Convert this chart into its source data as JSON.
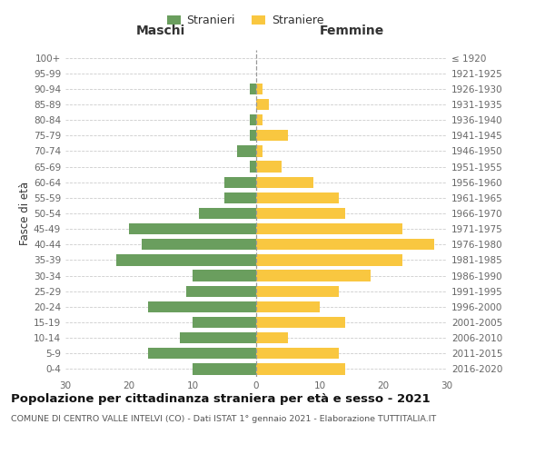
{
  "age_groups": [
    "0-4",
    "5-9",
    "10-14",
    "15-19",
    "20-24",
    "25-29",
    "30-34",
    "35-39",
    "40-44",
    "45-49",
    "50-54",
    "55-59",
    "60-64",
    "65-69",
    "70-74",
    "75-79",
    "80-84",
    "85-89",
    "90-94",
    "95-99",
    "100+"
  ],
  "birth_years": [
    "2016-2020",
    "2011-2015",
    "2006-2010",
    "2001-2005",
    "1996-2000",
    "1991-1995",
    "1986-1990",
    "1981-1985",
    "1976-1980",
    "1971-1975",
    "1966-1970",
    "1961-1965",
    "1956-1960",
    "1951-1955",
    "1946-1950",
    "1941-1945",
    "1936-1940",
    "1931-1935",
    "1926-1930",
    "1921-1925",
    "≤ 1920"
  ],
  "males": [
    10,
    17,
    12,
    10,
    17,
    11,
    10,
    22,
    18,
    20,
    9,
    5,
    5,
    1,
    3,
    1,
    1,
    0,
    1,
    0,
    0
  ],
  "females": [
    14,
    13,
    5,
    14,
    10,
    13,
    18,
    23,
    28,
    23,
    14,
    13,
    9,
    4,
    1,
    5,
    1,
    2,
    1,
    0,
    0
  ],
  "male_color": "#6a9e5e",
  "female_color": "#f9c740",
  "bar_height": 0.72,
  "xlim": 30,
  "title": "Popolazione per cittadinanza straniera per età e sesso - 2021",
  "subtitle": "COMUNE DI CENTRO VALLE INTELVI (CO) - Dati ISTAT 1° gennaio 2021 - Elaborazione TUTTITALIA.IT",
  "ylabel_left": "Fasce di età",
  "legend_male": "Stranieri",
  "legend_female": "Straniere",
  "maschi_label": "Maschi",
  "femmine_label": "Femmine",
  "bg_color": "#ffffff",
  "grid_color": "#cccccc",
  "text_color": "#666666",
  "axis_label_color": "#333333",
  "title_fontsize": 9.5,
  "subtitle_fontsize": 6.8,
  "tick_fontsize": 7.5,
  "label_fontsize": 8.5,
  "legend_fontsize": 9,
  "header_fontsize": 10
}
